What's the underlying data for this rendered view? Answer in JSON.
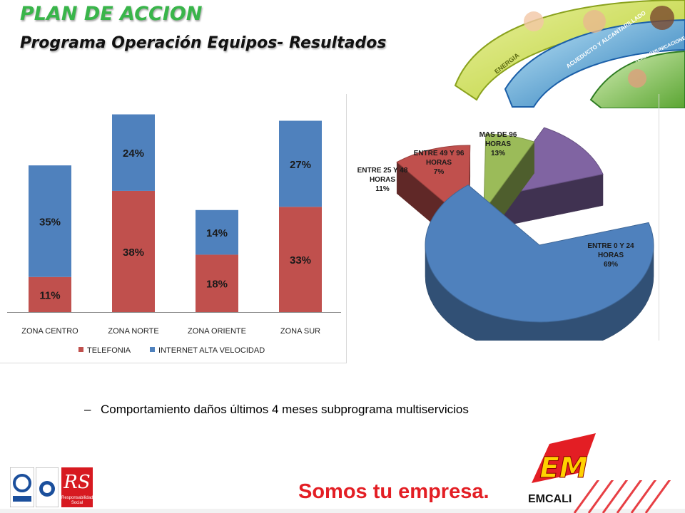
{
  "header": {
    "title": "PLAN DE ACCION",
    "subtitle": "Programa Operación Equipos- Resultados"
  },
  "banner": {
    "labels": [
      "ENERGIA",
      "ACUEDUCTO Y ALCANTARILLADO",
      "TELECOMUNICACIONES"
    ],
    "colors": [
      "#c8d642",
      "#2e8bc0",
      "#1b5fa8",
      "#8cc63f"
    ]
  },
  "chart_data": [
    {
      "type": "bar",
      "stacked": true,
      "categories": [
        "ZONA CENTRO",
        "ZONA NORTE",
        "ZONA ORIENTE",
        "ZONA SUR"
      ],
      "series": [
        {
          "name": "TELEFONIA",
          "color": "#c0504d",
          "values": [
            11,
            38,
            18,
            33
          ],
          "labels": [
            "11%",
            "38%",
            "18%",
            "33%"
          ]
        },
        {
          "name": "INTERNET  ALTA VELOCIDAD",
          "color": "#4f81bd",
          "values": [
            35,
            24,
            14,
            27
          ],
          "labels": [
            "35%",
            "24%",
            "14%",
            "27%"
          ]
        }
      ],
      "legend_position": "bottom",
      "ylim": [
        0,
        61
      ]
    },
    {
      "type": "pie",
      "exploded": true,
      "three_d": true,
      "slices": [
        {
          "label_lines": [
            "ENTRE 0 Y 24",
            "HORAS",
            "69%"
          ],
          "value": 69,
          "color": "#4f81bd"
        },
        {
          "label_lines": [
            "ENTRE 25 Y 48",
            "HORAS",
            "11%"
          ],
          "value": 11,
          "color": "#c0504d"
        },
        {
          "label_lines": [
            "ENTRE 49 Y 96",
            "HORAS",
            "7%"
          ],
          "value": 7,
          "color": "#9bbb59"
        },
        {
          "label_lines": [
            "MAS DE 96",
            "HORAS",
            "13%"
          ],
          "value": 13,
          "color": "#8064a2"
        }
      ]
    }
  ],
  "bullet": {
    "dash": "–",
    "text": "Comportamiento daños últimos 4 meses subprograma multiservicios"
  },
  "footer": {
    "slogan": "Somos tu empresa.",
    "brand": "EMCALI",
    "logo_letters": "EM",
    "rs_letters": "RS",
    "rs_caption": "Responsabilidad Social",
    "accent": "#e31e24"
  }
}
